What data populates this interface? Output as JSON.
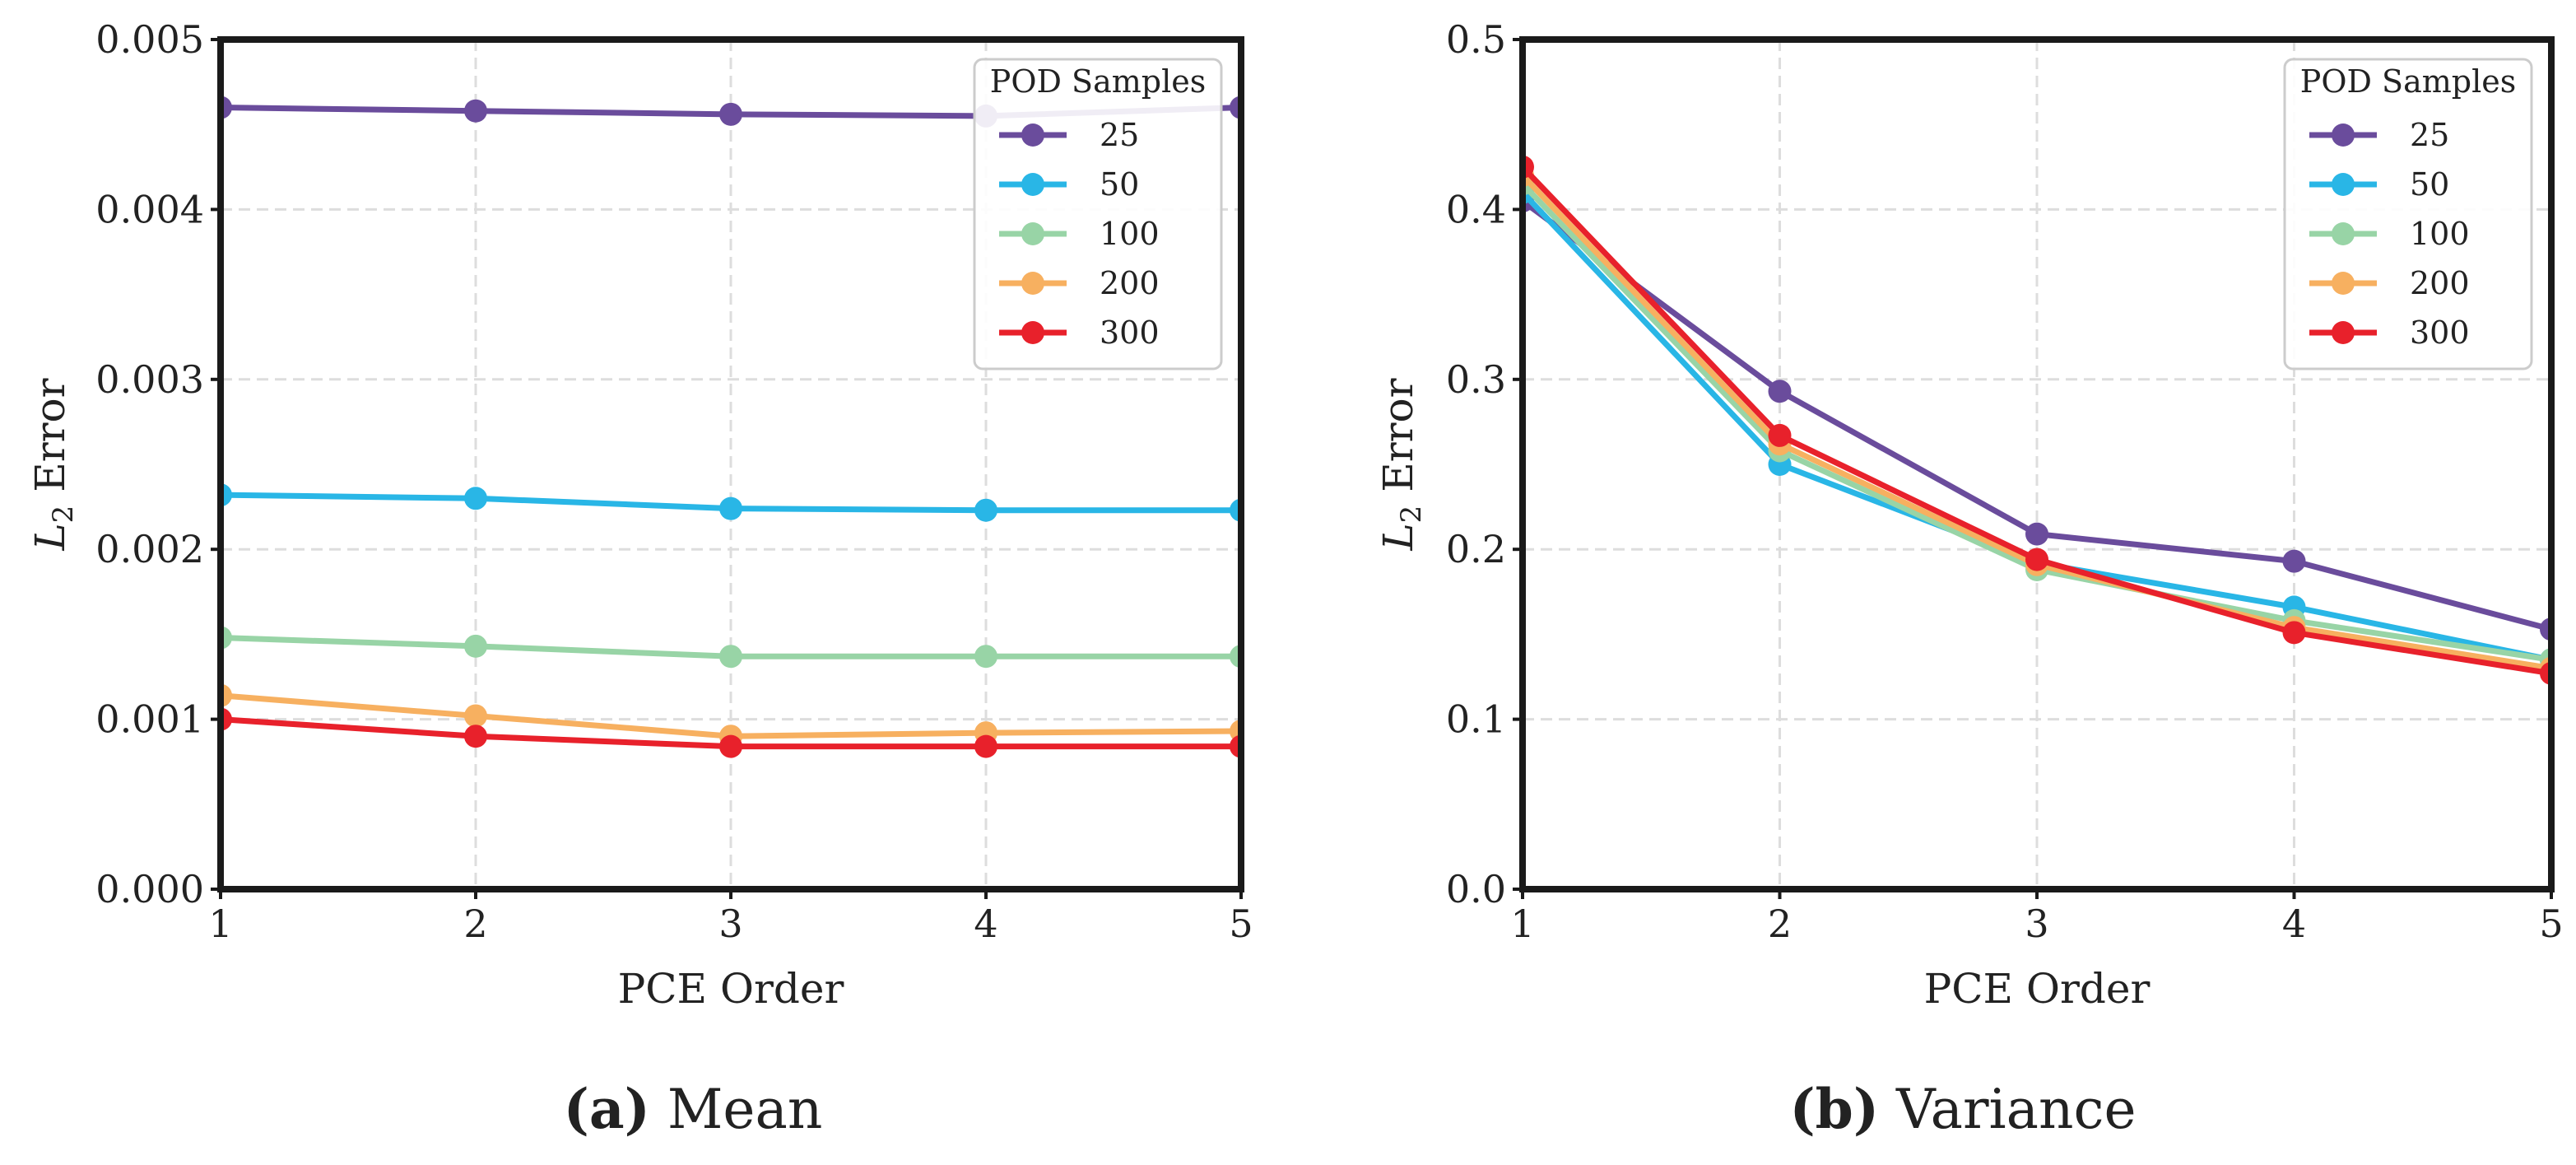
{
  "chart_data": [
    {
      "type": "line",
      "caption_letter": "(a)",
      "caption_text": " Mean",
      "xlabel": "PCE Order",
      "ylabel": "L2 Error",
      "ylabel_main": "L",
      "ylabel_sub": "2",
      "ylabel_rest": " Error",
      "x": [
        1,
        2,
        3,
        4,
        5
      ],
      "xlim": [
        1,
        5
      ],
      "ylim": [
        0,
        0.005
      ],
      "xticks": [
        1,
        2,
        3,
        4,
        5
      ],
      "xtick_labels": [
        "1",
        "2",
        "3",
        "4",
        "5"
      ],
      "yticks": [
        0,
        0.001,
        0.002,
        0.003,
        0.004,
        0.005
      ],
      "ytick_labels": [
        "0.000",
        "0.001",
        "0.002",
        "0.003",
        "0.004",
        "0.005"
      ],
      "grid": true,
      "legend_position": "top-right",
      "legend_title": "POD Samples",
      "series": [
        {
          "name": "25",
          "color": "#6a4c9c",
          "values": [
            0.0046,
            0.00458,
            0.00456,
            0.00455,
            0.0046
          ]
        },
        {
          "name": "50",
          "color": "#29b6e6",
          "values": [
            0.00232,
            0.0023,
            0.00224,
            0.00223,
            0.00223
          ]
        },
        {
          "name": "100",
          "color": "#98d4a6",
          "values": [
            0.00148,
            0.00143,
            0.00137,
            0.00137,
            0.00137
          ]
        },
        {
          "name": "200",
          "color": "#f7b060",
          "values": [
            0.00114,
            0.00102,
            0.0009,
            0.00092,
            0.00093
          ]
        },
        {
          "name": "300",
          "color": "#e8212b",
          "values": [
            0.001,
            0.0009,
            0.00084,
            0.00084,
            0.00084
          ]
        }
      ]
    },
    {
      "type": "line",
      "caption_letter": "(b)",
      "caption_text": " Variance",
      "xlabel": "PCE Order",
      "ylabel": "L2 Error",
      "ylabel_main": "L",
      "ylabel_sub": "2",
      "ylabel_rest": " Error",
      "x": [
        1,
        2,
        3,
        4,
        5
      ],
      "xlim": [
        1,
        5
      ],
      "ylim": [
        0,
        0.5
      ],
      "xticks": [
        1,
        2,
        3,
        4,
        5
      ],
      "xtick_labels": [
        "1",
        "2",
        "3",
        "4",
        "5"
      ],
      "yticks": [
        0,
        0.1,
        0.2,
        0.3,
        0.4,
        0.5
      ],
      "ytick_labels": [
        "0.0",
        "0.1",
        "0.2",
        "0.3",
        "0.4",
        "0.5"
      ],
      "grid": true,
      "legend_position": "top-right",
      "legend_title": "POD Samples",
      "series": [
        {
          "name": "25",
          "color": "#6a4c9c",
          "values": [
            0.405,
            0.293,
            0.209,
            0.193,
            0.153
          ]
        },
        {
          "name": "50",
          "color": "#29b6e6",
          "values": [
            0.41,
            0.25,
            0.192,
            0.166,
            0.135
          ]
        },
        {
          "name": "100",
          "color": "#98d4a6",
          "values": [
            0.415,
            0.258,
            0.188,
            0.158,
            0.135
          ]
        },
        {
          "name": "200",
          "color": "#f7b060",
          "values": [
            0.42,
            0.262,
            0.191,
            0.154,
            0.13
          ]
        },
        {
          "name": "300",
          "color": "#e8212b",
          "values": [
            0.425,
            0.267,
            0.194,
            0.151,
            0.127
          ]
        }
      ]
    }
  ]
}
